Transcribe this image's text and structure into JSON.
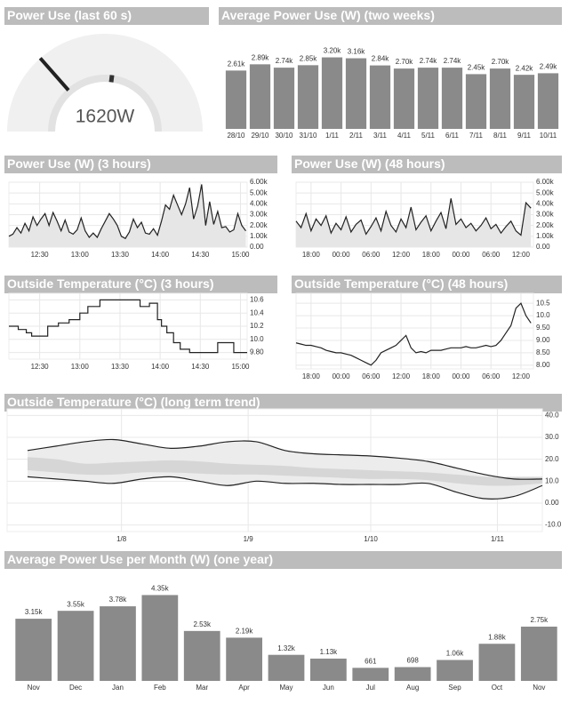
{
  "chart_data": [
    {
      "type": "gauge",
      "title": "Power Use (last 60 s)",
      "value": 1620,
      "value_label": "1620W",
      "range": [
        0,
        6000
      ],
      "peak": 3240
    },
    {
      "type": "bar",
      "title": "Average Power Use (W) (two weeks)",
      "color": "#8a8a8a",
      "categories": [
        "28/10",
        "29/10",
        "30/10",
        "31/10",
        "1/11",
        "2/11",
        "3/11",
        "4/11",
        "5/11",
        "6/11",
        "7/11",
        "8/11",
        "9/11",
        "10/11"
      ],
      "values": [
        2610,
        2890,
        2740,
        2850,
        3200,
        3160,
        2840,
        2700,
        2740,
        2740,
        2450,
        2700,
        2420,
        2490
      ],
      "value_labels": [
        "2.61k",
        "2.89k",
        "2.74k",
        "2.85k",
        "3.20k",
        "3.16k",
        "2.84k",
        "2.70k",
        "2.74k",
        "2.74k",
        "2.45k",
        "2.70k",
        "2.42k",
        "2.49k"
      ],
      "ylim": [
        0,
        3500
      ]
    },
    {
      "type": "line",
      "title": "Power Use (W) (3 hours)",
      "color": "#222222",
      "area": true,
      "area_color": "#e6e6e6",
      "grid": true,
      "x": [
        7,
        10,
        13,
        16,
        19,
        22,
        25,
        28,
        31,
        34,
        37,
        40,
        43,
        46,
        49,
        52,
        55,
        58,
        61,
        64,
        67,
        70,
        73,
        76,
        79,
        82,
        85,
        88,
        91,
        94,
        97,
        100,
        103,
        106,
        109,
        112,
        115,
        118,
        121,
        124,
        127,
        130,
        133,
        136,
        139,
        142,
        145,
        148,
        151,
        154,
        157,
        160,
        163,
        166,
        169,
        172,
        175,
        178,
        181,
        184
      ],
      "values": [
        1000,
        1200,
        1800,
        1300,
        2200,
        1500,
        2800,
        2000,
        2600,
        3100,
        2000,
        3200,
        2400,
        1500,
        2500,
        1400,
        1200,
        1600,
        2700,
        1500,
        900,
        1300,
        900,
        1700,
        2400,
        3100,
        2600,
        2000,
        1000,
        800,
        1400,
        2600,
        1800,
        2300,
        1300,
        1200,
        1700,
        1100,
        2400,
        3900,
        3500,
        4800,
        3900,
        3000,
        4000,
        5500,
        2600,
        3800,
        5800,
        2000,
        4200,
        2100,
        3300,
        1800,
        1900,
        1400,
        1600,
        3100,
        2000,
        1500
      ],
      "xlim": [
        7,
        185
      ],
      "xticks": [
        {
          "value": 30,
          "label": "12:30"
        },
        {
          "value": 60,
          "label": "13:00"
        },
        {
          "value": 90,
          "label": "13:30"
        },
        {
          "value": 120,
          "label": "14:00"
        },
        {
          "value": 150,
          "label": "14:30"
        },
        {
          "value": 180,
          "label": "15:00"
        }
      ],
      "ylim": [
        0,
        6000
      ],
      "yticks": [
        {
          "value": 0,
          "label": "0.00"
        },
        {
          "value": 1000,
          "label": "1.00k"
        },
        {
          "value": 2000,
          "label": "2.00k"
        },
        {
          "value": 3000,
          "label": "3.00k"
        },
        {
          "value": 4000,
          "label": "4.00k"
        },
        {
          "value": 5000,
          "label": "5.00k"
        },
        {
          "value": 6000,
          "label": "6.00k"
        }
      ]
    },
    {
      "type": "line",
      "title": "Power Use (W) (48 hours)",
      "color": "#222222",
      "area": true,
      "area_color": "#e6e6e6",
      "grid": true,
      "x": [
        -3,
        -2,
        -1,
        0,
        1,
        2,
        3,
        4,
        5,
        6,
        7,
        8,
        9,
        10,
        11,
        12,
        13,
        14,
        15,
        16,
        17,
        18,
        19,
        20,
        21,
        22,
        23,
        24,
        25,
        26,
        27,
        28,
        29,
        30,
        31,
        32,
        33,
        34,
        35,
        36,
        37,
        38,
        39,
        40,
        41,
        42,
        43,
        44
      ],
      "values": [
        2400,
        1800,
        3100,
        1500,
        2600,
        2000,
        2900,
        1300,
        2200,
        1600,
        2800,
        1400,
        2100,
        2500,
        1200,
        1900,
        2700,
        1500,
        3300,
        2000,
        1400,
        2600,
        1800,
        3700,
        1600,
        2300,
        2900,
        1500,
        2400,
        3200,
        1700,
        4500,
        2100,
        2600,
        1800,
        2200,
        1500,
        2000,
        2700,
        1700,
        2100,
        1300,
        1900,
        2400,
        1500,
        1100,
        4100,
        3600
      ],
      "xlim": [
        -3,
        44.5
      ],
      "xticks": [
        {
          "value": 0,
          "label": "18:00"
        },
        {
          "value": 6,
          "label": "00:00"
        },
        {
          "value": 12,
          "label": "06:00"
        },
        {
          "value": 18,
          "label": "12:00"
        },
        {
          "value": 24,
          "label": "18:00"
        },
        {
          "value": 30,
          "label": "00:00"
        },
        {
          "value": 36,
          "label": "06:00"
        },
        {
          "value": 42,
          "label": "12:00"
        }
      ],
      "ylim": [
        0,
        6000
      ],
      "yticks": [
        {
          "value": 0,
          "label": "0.00"
        },
        {
          "value": 1000,
          "label": "1.00k"
        },
        {
          "value": 2000,
          "label": "2.00k"
        },
        {
          "value": 3000,
          "label": "3.00k"
        },
        {
          "value": 4000,
          "label": "4.00k"
        },
        {
          "value": 5000,
          "label": "5.00k"
        },
        {
          "value": 6000,
          "label": "6.00k"
        }
      ]
    },
    {
      "type": "line",
      "title": "Outside Temperature (°C) (3 hours)",
      "color": "#222222",
      "step": true,
      "grid": true,
      "x": [
        7,
        14,
        20,
        24,
        36,
        44,
        52,
        60,
        66,
        75,
        105,
        112,
        118,
        121,
        125,
        130,
        135,
        142,
        163,
        175,
        185
      ],
      "values": [
        10.2,
        10.15,
        10.1,
        10.05,
        10.2,
        10.25,
        10.3,
        10.4,
        10.5,
        10.6,
        10.5,
        10.55,
        10.3,
        10.2,
        10.1,
        9.95,
        9.85,
        9.8,
        9.95,
        9.8,
        9.8
      ],
      "xlim": [
        7,
        185
      ],
      "xticks": [
        {
          "value": 30,
          "label": "12:30"
        },
        {
          "value": 60,
          "label": "13:00"
        },
        {
          "value": 90,
          "label": "13:30"
        },
        {
          "value": 120,
          "label": "14:00"
        },
        {
          "value": 150,
          "label": "14:30"
        },
        {
          "value": 180,
          "label": "15:00"
        }
      ],
      "ylim": [
        9.7,
        10.7
      ],
      "yticks": [
        {
          "value": 9.8,
          "label": "9.80"
        },
        {
          "value": 10,
          "label": "10.0"
        },
        10.2,
        10.4,
        10.6
      ]
    },
    {
      "type": "line",
      "title": "Outside Temperature (°C) (48 hours)",
      "color": "#222222",
      "grid": true,
      "x": [
        -3,
        -2,
        -1,
        0,
        1,
        2,
        3,
        4,
        5,
        6,
        7,
        8,
        9,
        10,
        11,
        12,
        13,
        14,
        15,
        16,
        17,
        18,
        19,
        20,
        21,
        22,
        23,
        24,
        25,
        26,
        27,
        28,
        29,
        30,
        31,
        32,
        33,
        34,
        35,
        36,
        37,
        38,
        39,
        40,
        41,
        42,
        43,
        44
      ],
      "values": [
        8.9,
        8.85,
        8.8,
        8.8,
        8.75,
        8.7,
        8.6,
        8.55,
        8.5,
        8.5,
        8.45,
        8.4,
        8.3,
        8.2,
        8.1,
        8.0,
        8.2,
        8.5,
        8.6,
        8.7,
        8.8,
        9.0,
        9.2,
        8.7,
        8.5,
        8.55,
        8.5,
        8.6,
        8.6,
        8.6,
        8.65,
        8.7,
        8.7,
        8.7,
        8.75,
        8.7,
        8.7,
        8.75,
        8.8,
        8.75,
        8.8,
        9.0,
        9.3,
        9.6,
        10.3,
        10.5,
        10.0,
        9.7
      ],
      "xlim": [
        -3,
        44.5
      ],
      "xticks": [
        {
          "value": 0,
          "label": "18:00"
        },
        {
          "value": 6,
          "label": "00:00"
        },
        {
          "value": 12,
          "label": "06:00"
        },
        {
          "value": 18,
          "label": "12:00"
        },
        {
          "value": 24,
          "label": "18:00"
        },
        {
          "value": 30,
          "label": "00:00"
        },
        {
          "value": 36,
          "label": "06:00"
        },
        {
          "value": 42,
          "label": "12:00"
        }
      ],
      "ylim": [
        7.85,
        10.9
      ],
      "yticks": [
        {
          "value": 8,
          "label": "8.00"
        },
        {
          "value": 8.5,
          "label": "8.50"
        },
        {
          "value": 9,
          "label": "9.00"
        },
        {
          "value": 9.5,
          "label": "9.50"
        },
        {
          "value": 10,
          "label": "10.0"
        },
        10.5
      ]
    },
    {
      "type": "band",
      "title": "Outside Temperature (°C) (long term trend)",
      "edge_color": "#222222",
      "grid": true,
      "x": [
        -23,
        -16,
        -9,
        -2,
        5,
        12,
        19,
        26,
        33,
        40,
        47,
        54,
        61,
        68,
        75,
        82,
        89,
        96,
        103
      ],
      "bands": [
        {
          "color": "#ececec",
          "upper": [
            24,
            26,
            28,
            29,
            27,
            25,
            26,
            28,
            28,
            24,
            22.5,
            22,
            21.5,
            20.5,
            19,
            16,
            13,
            11,
            11
          ],
          "lower": [
            12,
            11,
            10,
            9,
            11,
            12,
            10,
            8,
            10,
            9,
            9,
            8.5,
            8.5,
            8.5,
            9,
            5,
            2,
            3,
            8
          ]
        },
        {
          "color": "#d6d6d6",
          "upper": [
            21,
            20,
            18,
            18.5,
            19,
            19.5,
            19,
            18,
            17.5,
            17,
            16,
            15.5,
            15,
            14.5,
            14,
            13,
            12,
            12,
            12
          ],
          "lower": [
            15,
            14,
            13,
            13,
            14,
            14,
            13.5,
            13,
            13,
            12.5,
            12,
            11.5,
            11,
            11,
            10.5,
            9,
            8,
            8,
            9
          ]
        }
      ],
      "xlim": [
        -28,
        103
      ],
      "xticks": [
        {
          "value": 0,
          "label": "1/8"
        },
        {
          "value": 31,
          "label": "1/9"
        },
        {
          "value": 61,
          "label": "1/10"
        },
        {
          "value": 92,
          "label": "1/11"
        }
      ],
      "ylim": [
        -13,
        43
      ],
      "yticks": [
        {
          "value": -10,
          "label": "-10.0"
        },
        {
          "value": 0,
          "label": "0.00"
        },
        {
          "value": 10,
          "label": "10.0"
        },
        {
          "value": 20,
          "label": "20.0"
        },
        {
          "value": 30,
          "label": "30.0"
        },
        {
          "value": 40,
          "label": "40.0"
        }
      ]
    },
    {
      "type": "bar",
      "title": "Average Power Use per Month (W) (one year)",
      "color": "#8a8a8a",
      "categories": [
        "Nov",
        "Dec",
        "Jan",
        "Feb",
        "Mar",
        "Apr",
        "May",
        "Jun",
        "Jul",
        "Aug",
        "Sep",
        "Oct",
        "Nov"
      ],
      "values": [
        3150,
        3550,
        3780,
        4350,
        2530,
        2190,
        1320,
        1130,
        661,
        698,
        1060,
        1880,
        2750
      ],
      "value_labels": [
        "3.15k",
        "3.55k",
        "3.78k",
        "4.35k",
        "2.53k",
        "2.19k",
        "1.32k",
        "1.13k",
        "661",
        "698",
        "1.06k",
        "1.88k",
        "2.75k"
      ],
      "ylim": [
        0,
        5000
      ]
    }
  ]
}
